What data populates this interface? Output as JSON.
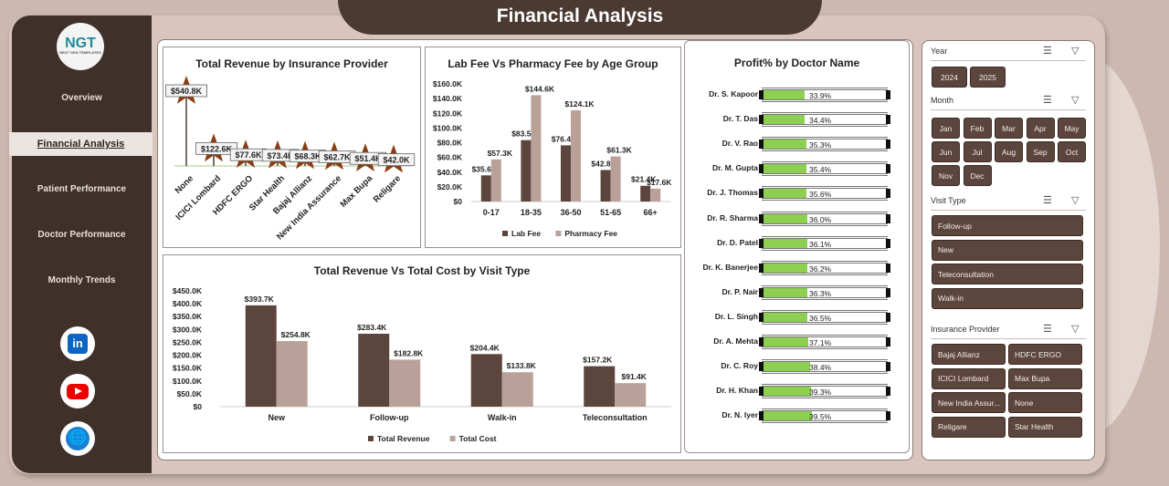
{
  "header": {
    "title": "Financial Analysis"
  },
  "sidebar": {
    "logo": "NGT",
    "logo_tagline": "NEXT GEN TEMPLATES",
    "items": [
      {
        "label": "Overview"
      },
      {
        "label": "Financial Analysis",
        "active": true
      },
      {
        "label": "Patient  Performance"
      },
      {
        "label": "Doctor Performance"
      },
      {
        "label": "Monthly Trends"
      }
    ],
    "social": [
      "linkedin-icon",
      "youtube-icon",
      "globe-icon"
    ]
  },
  "chart_data": [
    {
      "type": "lollipop",
      "title": "Total Revenue by Insurance Provider",
      "categories": [
        "None",
        "ICICI Lombard",
        "HDFC ERGO",
        "Star Health",
        "Bajaj Allianz",
        "New India Assurance",
        "Max Bupa",
        "Religare"
      ],
      "values": [
        540.8,
        122.6,
        77.6,
        73.4,
        68.3,
        62.7,
        51.4,
        42.0
      ],
      "labels": [
        "$540.8K",
        "$122.6K",
        "$77.6K",
        "$73.4K",
        "$68.3K",
        "$62.7K",
        "$51.4K",
        "$42.0K"
      ],
      "unit": "$K",
      "marker": "star",
      "color": "#8b3d12"
    },
    {
      "type": "bar",
      "title": "Lab Fee Vs Pharmacy Fee by Age Group",
      "categories": [
        "0-17",
        "18-35",
        "36-50",
        "51-65",
        "66+"
      ],
      "ylim": [
        0,
        160
      ],
      "yticks": [
        "$0",
        "$20.0K",
        "$40.0K",
        "$60.0K",
        "$80.0K",
        "$100.0K",
        "$120.0K",
        "$140.0K",
        "$160.0K"
      ],
      "series": [
        {
          "name": "Lab Fee",
          "color": "#5c453c",
          "values": [
            35.6,
            83.5,
            76.4,
            42.8,
            21.4
          ],
          "labels": [
            "$35.6K",
            "$83.5K",
            "$76.4K",
            "$42.8K",
            "$21.4K"
          ]
        },
        {
          "name": "Pharmacy Fee",
          "color": "#b9a199",
          "values": [
            57.3,
            144.6,
            124.1,
            61.3,
            17.6
          ],
          "labels": [
            "$57.3K",
            "$144.6K",
            "$124.1K",
            "$61.3K",
            "$17.6K"
          ]
        }
      ],
      "legend": "bottom"
    },
    {
      "type": "bar",
      "title": "Total Revenue Vs Total Cost by Visit Type",
      "categories": [
        "New",
        "Follow-up",
        "Walk-in",
        "Teleconsultation"
      ],
      "ylim": [
        0,
        450
      ],
      "yticks": [
        "$0",
        "$50.0K",
        "$100.0K",
        "$150.0K",
        "$200.0K",
        "$250.0K",
        "$300.0K",
        "$350.0K",
        "$400.0K",
        "$450.0K"
      ],
      "series": [
        {
          "name": "Total Revenue",
          "color": "#5c453c",
          "values": [
            393.7,
            283.4,
            204.4,
            157.2
          ],
          "labels": [
            "$393.7K",
            "$283.4K",
            "$204.4K",
            "$157.2K"
          ]
        },
        {
          "name": "Total Cost",
          "color": "#b9a199",
          "values": [
            254.8,
            182.8,
            133.8,
            91.4
          ],
          "labels": [
            "$254.8K",
            "$182.8K",
            "$133.8K",
            "$91.4K"
          ]
        }
      ],
      "legend": "bottom"
    },
    {
      "type": "bar-horizontal",
      "title": "Profit% by Doctor Name",
      "categories": [
        "Dr. S. Kapoor",
        "Dr. T. Das",
        "Dr. V. Rao",
        "Dr. M. Gupta",
        "Dr. J. Thomas",
        "Dr. R. Sharma",
        "Dr. D. Patel",
        "Dr. K. Banerjee",
        "Dr. P. Nair",
        "Dr. L. Singh",
        "Dr. A. Mehta",
        "Dr. C. Roy",
        "Dr. H. Khan",
        "Dr. N. Iyer"
      ],
      "values": [
        33.9,
        34.4,
        35.3,
        35.4,
        35.6,
        36.0,
        36.1,
        36.2,
        36.3,
        36.5,
        37.1,
        38.4,
        39.3,
        39.5
      ],
      "labels": [
        "33.9%",
        "34.4%",
        "35.3%",
        "35.4%",
        "35.6%",
        "36.0%",
        "36.1%",
        "36.2%",
        "36.3%",
        "36.5%",
        "37.1%",
        "38.4%",
        "39.3%",
        "39.5%"
      ],
      "color": "#8dcf50"
    }
  ],
  "slicers": [
    {
      "title": "Year",
      "items": [
        "2024",
        "2025"
      ]
    },
    {
      "title": "Month",
      "items": [
        "Jan",
        "Feb",
        "Mar",
        "Apr",
        "May",
        "Jun",
        "Jul",
        "Aug",
        "Sep",
        "Oct",
        "Nov",
        "Dec"
      ]
    },
    {
      "title": "Visit Type",
      "items": [
        "Follow-up",
        "New",
        "Teleconsultation",
        "Walk-in"
      ]
    },
    {
      "title": "Insurance Provider",
      "items": [
        "Bajaj Allianz",
        "HDFC ERGO",
        "ICICI Lombard",
        "Max Bupa",
        "New India Assur...",
        "None",
        "Religare",
        "Star Health"
      ]
    }
  ]
}
